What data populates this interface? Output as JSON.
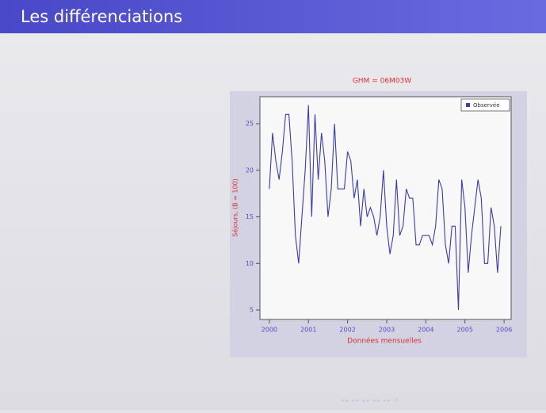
{
  "slide_title": "Les différenciations",
  "chart_data": {
    "type": "line",
    "title": "GHM = 06M03W",
    "xlabel": "Données mensuelles",
    "ylabel": "Séjours, (B = 100)",
    "x": [
      2000,
      2000.083,
      2000.167,
      2000.25,
      2000.333,
      2000.417,
      2000.5,
      2000.583,
      2000.667,
      2000.75,
      2000.833,
      2000.917,
      2001,
      2001.083,
      2001.167,
      2001.25,
      2001.333,
      2001.417,
      2001.5,
      2001.583,
      2001.667,
      2001.75,
      2001.833,
      2001.917,
      2002,
      2002.083,
      2002.167,
      2002.25,
      2002.333,
      2002.417,
      2002.5,
      2002.583,
      2002.667,
      2002.75,
      2002.833,
      2002.917,
      2003,
      2003.083,
      2003.167,
      2003.25,
      2003.333,
      2003.417,
      2003.5,
      2003.583,
      2003.667,
      2003.75,
      2003.833,
      2003.917,
      2004,
      2004.083,
      2004.167,
      2004.25,
      2004.333,
      2004.417,
      2004.5,
      2004.583,
      2004.667,
      2004.75,
      2004.833,
      2004.917,
      2005,
      2005.083,
      2005.167,
      2005.25,
      2005.333,
      2005.417,
      2005.5,
      2005.583,
      2005.667,
      2005.75,
      2005.833,
      2005.917
    ],
    "series": [
      {
        "name": "Observée",
        "color": "#3a3ab8",
        "values": [
          18,
          24,
          21,
          19,
          22,
          26,
          26,
          21,
          13,
          10,
          15,
          20,
          27,
          15,
          26,
          19,
          24,
          21,
          15,
          18,
          25,
          18,
          18,
          18,
          22,
          21,
          17,
          19,
          14,
          18,
          15,
          16,
          15,
          13,
          15,
          20,
          14,
          11,
          13,
          19,
          13,
          14,
          18,
          17,
          17,
          12,
          12,
          13,
          13,
          13,
          12,
          14,
          19,
          18,
          12,
          10,
          14,
          14,
          5,
          19,
          16,
          9,
          13,
          16,
          19,
          17,
          10,
          10,
          16,
          14,
          9,
          14
        ]
      }
    ],
    "xlim": [
      1999.76,
      2006.18
    ],
    "ylim": [
      3.98,
      27.9
    ],
    "xticks": [
      2000,
      2001,
      2002,
      2003,
      2004,
      2005,
      2006
    ],
    "yticks": [
      5,
      10,
      15,
      20,
      25
    ],
    "legend": "top-right"
  }
}
